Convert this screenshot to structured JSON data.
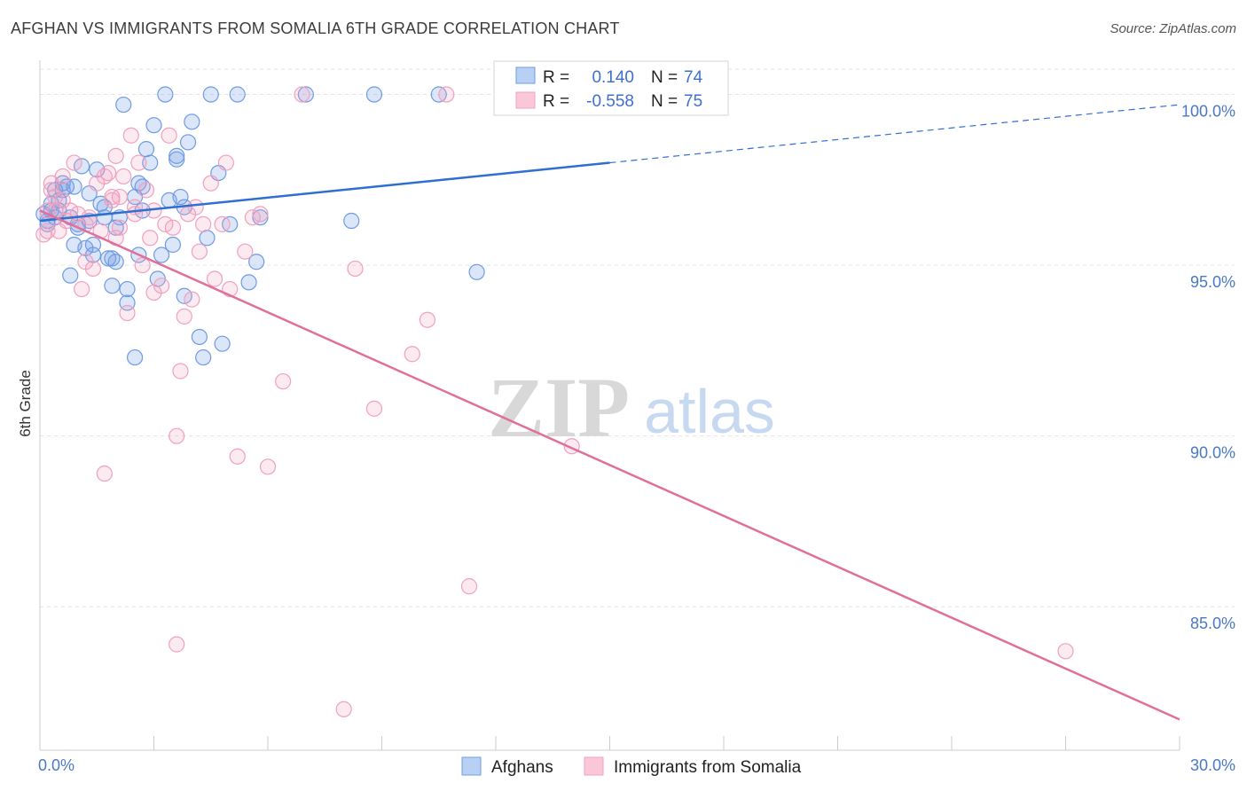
{
  "title": "AFGHAN VS IMMIGRANTS FROM SOMALIA 6TH GRADE CORRELATION CHART",
  "source": "Source: ZipAtlas.com",
  "watermark": {
    "zip": "ZIP",
    "atlas": "atlas"
  },
  "legend_stats": [
    {
      "r_label": "R =",
      "r_value": "0.140",
      "n_label": "N =",
      "n_value": "74"
    },
    {
      "r_label": "R =",
      "r_value": "-0.558",
      "n_label": "N =",
      "n_value": "75"
    }
  ],
  "chart_data": {
    "type": "scatter",
    "title": "AFGHAN VS IMMIGRANTS FROM SOMALIA 6TH GRADE CORRELATION CHART",
    "ylabel": "6th Grade",
    "xlabel": "",
    "xlim": [
      0,
      30
    ],
    "ylim": [
      80.8,
      101
    ],
    "x_tick_labels": [
      "0.0%",
      "30.0%"
    ],
    "y_ticks": [
      85,
      90,
      95,
      100
    ],
    "y_tick_labels": [
      "85.0%",
      "90.0%",
      "95.0%",
      "100.0%"
    ],
    "grid": true,
    "legend_position": "bottom",
    "colors": {
      "afghans": "#6f9be3",
      "somalia": "#f0a0bd",
      "afghans_line": "#2f6fd0",
      "somalia_line": "#e0709a"
    },
    "series": [
      {
        "name": "Afghans",
        "r": 0.14,
        "n": 74,
        "trend": {
          "x0": 0,
          "y0": 96.3,
          "x1": 15,
          "y1": 98.0,
          "dash_to_x": 30,
          "dash_to_y": 99.7
        },
        "points": [
          [
            0.1,
            96.5
          ],
          [
            0.2,
            96.2
          ],
          [
            0.3,
            96.8
          ],
          [
            0.4,
            97.2
          ],
          [
            0.5,
            96.6
          ],
          [
            0.6,
            97.4
          ],
          [
            0.7,
            97.3
          ],
          [
            0.8,
            96.4
          ],
          [
            0.9,
            95.6
          ],
          [
            1.0,
            96.1
          ],
          [
            0.8,
            94.7
          ],
          [
            1.1,
            97.9
          ],
          [
            1.2,
            95.5
          ],
          [
            1.3,
            97.1
          ],
          [
            1.4,
            95.6
          ],
          [
            1.5,
            97.8
          ],
          [
            1.6,
            96.8
          ],
          [
            1.7,
            96.4
          ],
          [
            1.8,
            95.2
          ],
          [
            1.9,
            94.4
          ],
          [
            1.9,
            95.2
          ],
          [
            2.0,
            96.1
          ],
          [
            2.1,
            96.4
          ],
          [
            2.2,
            99.7
          ],
          [
            2.3,
            94.3
          ],
          [
            2.3,
            93.9
          ],
          [
            2.5,
            97.0
          ],
          [
            2.6,
            97.4
          ],
          [
            2.6,
            95.3
          ],
          [
            2.7,
            97.3
          ],
          [
            2.7,
            96.6
          ],
          [
            2.8,
            98.4
          ],
          [
            2.9,
            98.0
          ],
          [
            3.0,
            99.1
          ],
          [
            3.1,
            94.6
          ],
          [
            3.2,
            95.3
          ],
          [
            3.3,
            100.0
          ],
          [
            3.4,
            96.9
          ],
          [
            3.5,
            95.6
          ],
          [
            3.6,
            98.2
          ],
          [
            3.6,
            98.1
          ],
          [
            3.7,
            97.0
          ],
          [
            3.8,
            96.7
          ],
          [
            3.8,
            94.1
          ],
          [
            3.9,
            98.6
          ],
          [
            4.0,
            99.2
          ],
          [
            4.2,
            92.9
          ],
          [
            4.3,
            92.3
          ],
          [
            4.4,
            95.8
          ],
          [
            4.5,
            100.0
          ],
          [
            4.7,
            97.7
          ],
          [
            4.8,
            92.7
          ],
          [
            5.0,
            96.2
          ],
          [
            5.2,
            100.0
          ],
          [
            5.5,
            94.5
          ],
          [
            5.7,
            95.1
          ],
          [
            5.8,
            96.4
          ],
          [
            7.0,
            100.0
          ],
          [
            8.2,
            96.3
          ],
          [
            8.8,
            100.0
          ],
          [
            10.5,
            100.0
          ],
          [
            11.5,
            94.8
          ],
          [
            2.5,
            92.3
          ],
          [
            1.3,
            96.3
          ],
          [
            0.6,
            97.2
          ],
          [
            0.9,
            97.3
          ],
          [
            1.4,
            95.3
          ],
          [
            1.7,
            96.7
          ],
          [
            2.0,
            95.1
          ],
          [
            0.4,
            96.4
          ],
          [
            0.3,
            96.6
          ],
          [
            0.5,
            96.9
          ],
          [
            1.0,
            96.2
          ],
          [
            0.2,
            96.3
          ]
        ]
      },
      {
        "name": "Immigrants from Somalia",
        "r": -0.558,
        "n": 75,
        "trend": {
          "x0": 0,
          "y0": 96.6,
          "x1": 30,
          "y1": 81.7
        },
        "points": [
          [
            0.1,
            95.9
          ],
          [
            0.2,
            96.6
          ],
          [
            0.3,
            97.2
          ],
          [
            0.4,
            97.0
          ],
          [
            0.5,
            96.0
          ],
          [
            0.6,
            97.6
          ],
          [
            0.7,
            96.3
          ],
          [
            0.8,
            96.6
          ],
          [
            0.9,
            98.0
          ],
          [
            1.0,
            96.5
          ],
          [
            1.1,
            94.3
          ],
          [
            1.2,
            95.1
          ],
          [
            1.3,
            96.4
          ],
          [
            1.4,
            94.9
          ],
          [
            1.5,
            97.4
          ],
          [
            1.6,
            96.0
          ],
          [
            1.7,
            97.6
          ],
          [
            1.8,
            97.7
          ],
          [
            1.9,
            96.9
          ],
          [
            2.0,
            98.2
          ],
          [
            2.0,
            95.8
          ],
          [
            2.1,
            97.0
          ],
          [
            2.2,
            97.6
          ],
          [
            2.3,
            93.6
          ],
          [
            2.4,
            98.8
          ],
          [
            2.5,
            96.5
          ],
          [
            2.6,
            98.0
          ],
          [
            2.7,
            95.0
          ],
          [
            2.8,
            97.2
          ],
          [
            2.9,
            95.8
          ],
          [
            3.0,
            96.6
          ],
          [
            3.0,
            94.2
          ],
          [
            3.2,
            94.4
          ],
          [
            3.3,
            96.2
          ],
          [
            3.4,
            98.8
          ],
          [
            3.5,
            96.1
          ],
          [
            3.6,
            90.0
          ],
          [
            3.7,
            91.9
          ],
          [
            3.8,
            93.5
          ],
          [
            4.0,
            94.0
          ],
          [
            4.1,
            96.7
          ],
          [
            4.2,
            95.4
          ],
          [
            4.3,
            96.2
          ],
          [
            4.5,
            97.4
          ],
          [
            4.6,
            94.6
          ],
          [
            4.8,
            96.2
          ],
          [
            4.9,
            98.0
          ],
          [
            5.0,
            94.3
          ],
          [
            5.2,
            89.4
          ],
          [
            5.4,
            95.4
          ],
          [
            5.6,
            96.4
          ],
          [
            5.8,
            96.5
          ],
          [
            6.0,
            89.1
          ],
          [
            6.4,
            91.6
          ],
          [
            6.9,
            100.0
          ],
          [
            8.0,
            82.0
          ],
          [
            8.3,
            94.9
          ],
          [
            8.8,
            90.8
          ],
          [
            9.8,
            92.4
          ],
          [
            10.2,
            93.4
          ],
          [
            10.7,
            100.0
          ],
          [
            11.3,
            85.6
          ],
          [
            14.0,
            89.7
          ],
          [
            27.0,
            83.7
          ],
          [
            1.7,
            88.9
          ],
          [
            3.6,
            83.9
          ],
          [
            2.1,
            96.1
          ],
          [
            0.4,
            96.6
          ],
          [
            0.3,
            97.4
          ],
          [
            0.6,
            96.9
          ],
          [
            1.2,
            96.2
          ],
          [
            1.9,
            97.0
          ],
          [
            2.5,
            96.7
          ],
          [
            3.9,
            96.5
          ],
          [
            0.2,
            96.0
          ]
        ]
      }
    ]
  }
}
